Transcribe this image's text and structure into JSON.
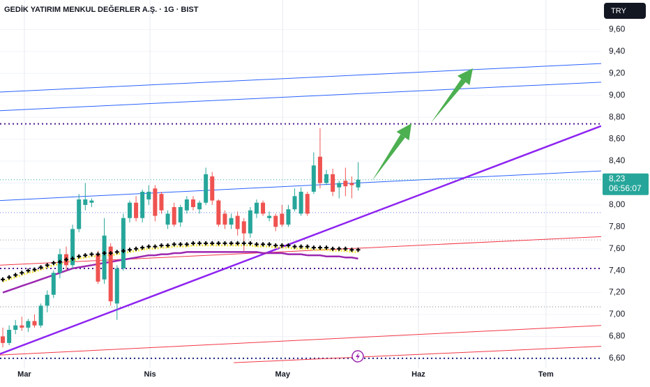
{
  "chart_data": {
    "type": "candlestick",
    "title": "GEDİK YATIRIM MENKUL DEĞERLER A.Ş. · 1G · BIST",
    "currency": "TRY",
    "last_price_label": "8,23",
    "countdown": "06:56:07",
    "up_color": "#26a69a",
    "down_color": "#ef5350",
    "open": [
      6.8,
      6.74,
      6.86,
      6.9,
      6.88,
      6.94,
      6.9,
      7.08,
      7.18,
      7.38,
      7.55,
      7.45,
      7.78,
      8.0,
      8.02,
      7.55,
      7.32,
      7.62,
      7.1,
      7.42,
      7.88,
      8.02,
      7.88,
      8.05,
      8.15,
      8.1,
      7.82,
      7.98,
      7.84,
      7.95,
      8.05,
      7.96,
      8.02,
      8.26,
      8.04,
      7.92,
      7.82,
      7.9,
      7.85,
      7.74,
      7.92,
      8.02,
      7.88,
      7.9,
      7.92,
      7.82,
      7.96,
      7.92,
      8.1,
      8.12,
      8.44,
      8.2,
      8.28,
      8.16,
      8.22,
      8.2,
      8.16
    ],
    "high": [
      6.88,
      6.9,
      6.95,
      6.98,
      6.96,
      7.0,
      7.1,
      7.22,
      7.4,
      7.6,
      7.62,
      7.82,
      8.1,
      8.2,
      8.06,
      7.58,
      7.88,
      7.65,
      7.45,
      7.92,
      8.04,
      8.08,
      8.14,
      8.18,
      8.18,
      8.12,
      7.95,
      8.02,
      8.0,
      8.08,
      8.08,
      8.04,
      8.34,
      8.3,
      8.05,
      7.95,
      7.92,
      7.94,
      7.88,
      7.98,
      8.05,
      8.04,
      7.94,
      7.92,
      8.0,
      8.0,
      8.15,
      8.16,
      8.12,
      8.48,
      8.7,
      8.32,
      8.33,
      8.22,
      8.34,
      8.26,
      8.39
    ],
    "low": [
      6.7,
      6.72,
      6.82,
      6.85,
      6.84,
      6.88,
      6.88,
      7.02,
      7.15,
      7.33,
      7.4,
      7.42,
      7.75,
      7.95,
      7.98,
      7.28,
      7.28,
      7.08,
      6.95,
      7.4,
      7.84,
      7.85,
      7.84,
      8.0,
      7.85,
      7.92,
      7.78,
      7.8,
      7.8,
      7.92,
      7.95,
      7.92,
      8.0,
      8.0,
      7.8,
      7.78,
      7.78,
      7.72,
      7.58,
      7.7,
      7.88,
      7.9,
      7.85,
      7.76,
      7.8,
      7.8,
      7.94,
      7.9,
      7.9,
      8.1,
      8.15,
      8.18,
      8.08,
      8.06,
      8.08,
      8.06,
      8.13
    ],
    "close": [
      6.74,
      6.86,
      6.9,
      6.88,
      6.94,
      6.9,
      7.08,
      7.18,
      7.38,
      7.55,
      7.45,
      7.78,
      8.05,
      8.05,
      8.04,
      7.3,
      7.72,
      7.12,
      7.42,
      7.88,
      8.02,
      7.88,
      8.12,
      8.12,
      7.9,
      7.95,
      7.92,
      7.82,
      7.98,
      8.05,
      7.98,
      8.02,
      8.28,
      8.04,
      7.82,
      7.82,
      7.88,
      7.78,
      7.74,
      7.95,
      8.02,
      7.92,
      7.9,
      7.8,
      7.82,
      7.96,
      8.08,
      8.12,
      7.92,
      8.36,
      8.2,
      8.28,
      8.12,
      8.2,
      8.17,
      8.18,
      8.23
    ],
    "overlays": [
      {
        "color": "#9c27b0",
        "marker": "line",
        "values": [
          7.2,
          7.22,
          7.24,
          7.26,
          7.28,
          7.3,
          7.32,
          7.34,
          7.36,
          7.38,
          7.4,
          7.42,
          7.43,
          7.44,
          7.45,
          7.46,
          7.47,
          7.48,
          7.49,
          7.5,
          7.51,
          7.52,
          7.53,
          7.54,
          7.54,
          7.55,
          7.55,
          7.56,
          7.56,
          7.57,
          7.57,
          7.57,
          7.57,
          7.57,
          7.57,
          7.57,
          7.57,
          7.57,
          7.57,
          7.57,
          7.57,
          7.56,
          7.56,
          7.56,
          7.56,
          7.55,
          7.55,
          7.55,
          7.54,
          7.54,
          7.54,
          7.53,
          7.53,
          7.53,
          7.52,
          7.52,
          7.51
        ]
      },
      {
        "color": "#000000",
        "marker": "cross",
        "values": [
          7.32,
          7.34,
          7.36,
          7.38,
          7.4,
          7.41,
          7.43,
          7.45,
          7.47,
          7.48,
          7.5,
          7.51,
          7.53,
          7.54,
          7.55,
          7.55,
          7.56,
          7.56,
          7.57,
          7.58,
          7.59,
          7.6,
          7.61,
          7.62,
          7.62,
          7.63,
          7.63,
          7.64,
          7.64,
          7.64,
          7.65,
          7.65,
          7.65,
          7.65,
          7.65,
          7.65,
          7.65,
          7.65,
          7.65,
          7.65,
          7.64,
          7.64,
          7.64,
          7.63,
          7.63,
          7.63,
          7.62,
          7.62,
          7.62,
          7.61,
          7.61,
          7.61,
          7.6,
          7.6,
          7.6,
          7.59,
          7.59
        ]
      }
    ],
    "lines": [
      {
        "color": "#2962ff",
        "width": 1,
        "points": [
          [
            -0.44,
            9.03
          ],
          [
            94.3,
            9.29
          ]
        ]
      },
      {
        "color": "#2962ff",
        "width": 1,
        "points": [
          [
            -0.44,
            8.86
          ],
          [
            94.3,
            9.12
          ]
        ]
      },
      {
        "color": "#2962ff",
        "width": 1,
        "points": [
          [
            -0.44,
            8.04
          ],
          [
            94.3,
            8.31
          ]
        ]
      },
      {
        "color": "#f23645",
        "width": 1,
        "points": [
          [
            -0.44,
            7.45
          ],
          [
            94.3,
            7.71
          ]
        ]
      },
      {
        "color": "#f23645",
        "width": 1,
        "points": [
          [
            -0.44,
            6.63
          ],
          [
            94.3,
            6.9
          ]
        ]
      },
      {
        "color": "#f23645",
        "width": 1,
        "points": [
          [
            36.4,
            6.56
          ],
          [
            94.3,
            6.71
          ]
        ]
      },
      {
        "color": "#8e24f0",
        "width": 2.5,
        "points": [
          [
            -0.44,
            6.64
          ],
          [
            94.3,
            8.72
          ]
        ]
      }
    ],
    "levels": [
      {
        "value": 8.74,
        "color": "#4a148c",
        "width": 2,
        "style": "dotted"
      },
      {
        "value": 7.42,
        "color": "#4a148c",
        "width": 2,
        "style": "dotted"
      },
      {
        "value": 6.6,
        "color": "#1a237e",
        "width": 2,
        "style": "dotted"
      },
      {
        "value": 7.07,
        "color": "#787b86",
        "width": 1,
        "style": "dotted"
      },
      {
        "value": 7.68,
        "color": "#9598a1",
        "width": 1,
        "style": "dotted"
      },
      {
        "value": 7.93,
        "color": "#5b7cf5",
        "width": 1,
        "style": "dotted"
      }
    ],
    "xlim": [
      -0.44,
      94.3
    ],
    "xticks": [
      {
        "value": 3.4,
        "label": "Mar"
      },
      {
        "value": 23.2,
        "label": "Nis"
      },
      {
        "value": 44.1,
        "label": "May"
      },
      {
        "value": 65.5,
        "label": "Haz"
      },
      {
        "value": 85.6,
        "label": "Tem"
      }
    ],
    "ylim": [
      6.51,
      9.87
    ],
    "yticks": [
      {
        "value": 6.6,
        "label": "6,60"
      },
      {
        "value": 6.8,
        "label": "6,80"
      },
      {
        "value": 7.0,
        "label": "7,00"
      },
      {
        "value": 7.2,
        "label": "7,20"
      },
      {
        "value": 7.4,
        "label": "7,40"
      },
      {
        "value": 7.6,
        "label": "7,60"
      },
      {
        "value": 7.8,
        "label": "7,80"
      },
      {
        "value": 8.0,
        "label": "8,00"
      },
      {
        "value": 8.2,
        "label": "8,20"
      },
      {
        "value": 8.4,
        "label": "8,40"
      },
      {
        "value": 8.6,
        "label": "8,60"
      },
      {
        "value": 8.8,
        "label": "8,80"
      },
      {
        "value": 9.0,
        "label": "9,00"
      },
      {
        "value": 9.2,
        "label": "9,20"
      },
      {
        "value": 9.4,
        "label": "9,40"
      },
      {
        "value": 9.6,
        "label": "9,60"
      }
    ],
    "grid": true
  }
}
